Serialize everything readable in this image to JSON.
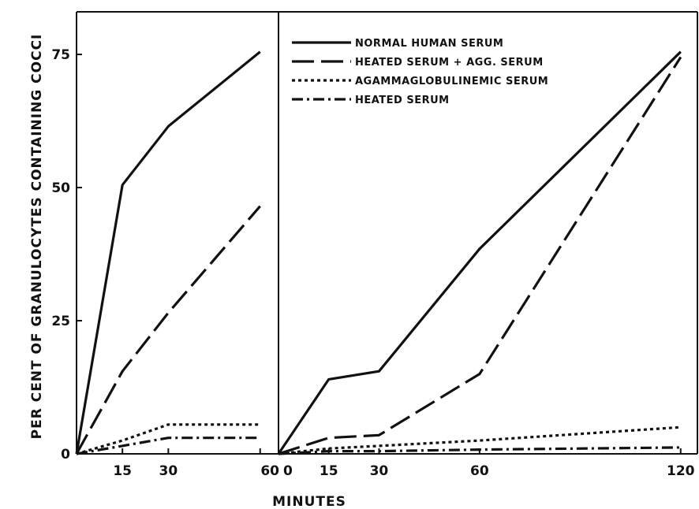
{
  "chart_data": {
    "type": "line",
    "ylabel": "PER CENT OF GRANULOCYTES CONTAINING COCCI",
    "xlabel": "MINUTES",
    "ylim": [
      0,
      83
    ],
    "y_ticks": [
      0,
      25,
      50,
      75
    ],
    "grid": false,
    "legend_position": "top-right of right panel",
    "series_styles": [
      {
        "name": "NORMAL HUMAN SERUM",
        "dash": "solid"
      },
      {
        "name": "HEATED SERUM + AGG. SERUM",
        "dash": "long-dash"
      },
      {
        "name": "AGAMMAGLOBULINEMIC SERUM",
        "dash": "dotted"
      },
      {
        "name": "HEATED SERUM",
        "dash": "dash-dot"
      }
    ],
    "panels": [
      {
        "xlim": [
          0,
          66
        ],
        "x_ticks": [
          15,
          30,
          60
        ],
        "series": [
          {
            "name": "NORMAL HUMAN SERUM",
            "x": [
              0,
              15,
              30,
              60
            ],
            "y": [
              0,
              50.5,
              61.5,
              75.5
            ]
          },
          {
            "name": "HEATED SERUM + AGG. SERUM",
            "x": [
              0,
              15,
              30,
              60
            ],
            "y": [
              0,
              15.5,
              26.5,
              46.5
            ]
          },
          {
            "name": "AGAMMAGLOBULINEMIC SERUM",
            "x": [
              0,
              15,
              30,
              60
            ],
            "y": [
              0,
              2.5,
              5.5,
              5.5
            ]
          },
          {
            "name": "HEATED SERUM",
            "x": [
              0,
              15,
              30,
              60
            ],
            "y": [
              0,
              1.5,
              3,
              3
            ]
          }
        ]
      },
      {
        "xlim": [
          0,
          125
        ],
        "x_ticks": [
          0,
          15,
          30,
          60,
          120
        ],
        "series": [
          {
            "name": "NORMAL HUMAN SERUM",
            "x": [
              0,
              15,
              30,
              60,
              120
            ],
            "y": [
              0,
              14,
              15.5,
              38.5,
              75.5
            ]
          },
          {
            "name": "HEATED SERUM + AGG. SERUM",
            "x": [
              0,
              15,
              30,
              60,
              120
            ],
            "y": [
              0,
              3,
              3.5,
              15,
              74.5
            ]
          },
          {
            "name": "AGAMMAGLOBULINEMIC SERUM",
            "x": [
              0,
              15,
              30,
              60,
              120
            ],
            "y": [
              0,
              1,
              1.5,
              2.5,
              5
            ]
          },
          {
            "name": "HEATED SERUM",
            "x": [
              0,
              15,
              30,
              60,
              120
            ],
            "y": [
              0,
              0.5,
              0.5,
              0.8,
              1.2
            ]
          }
        ]
      }
    ]
  }
}
